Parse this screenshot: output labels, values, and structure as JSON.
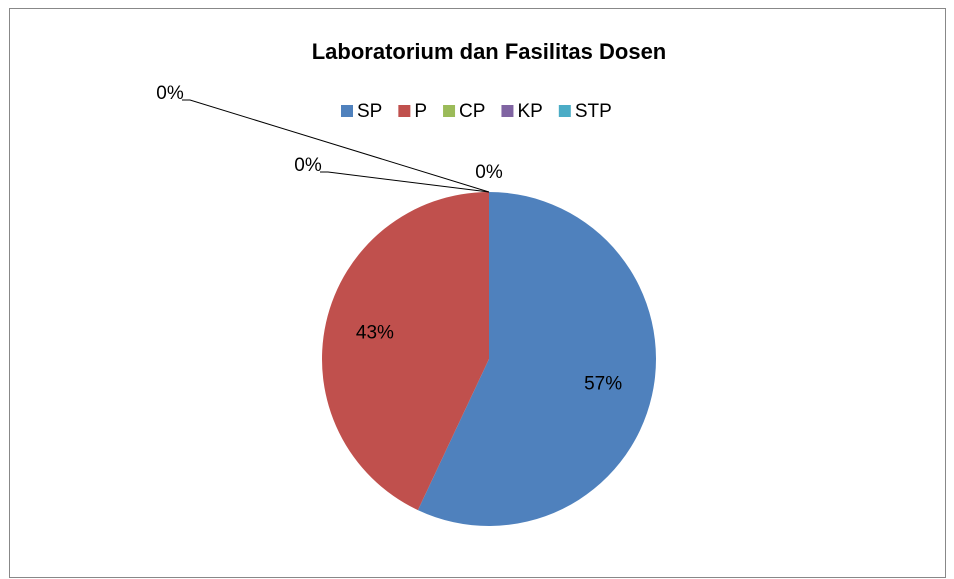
{
  "chart_data": {
    "type": "pie",
    "title": "Laboratorium dan Fasilitas Dosen",
    "categories": [
      "SP",
      "P",
      "CP",
      "KP",
      "STP"
    ],
    "values": [
      57,
      43,
      0,
      0,
      0
    ],
    "value_labels": [
      "57%",
      "43%",
      "0%",
      "0%",
      "0%"
    ],
    "colors": [
      "#4f81bd",
      "#c0504d",
      "#9bbb59",
      "#8064a2",
      "#4bacc6"
    ],
    "legend": "top"
  }
}
